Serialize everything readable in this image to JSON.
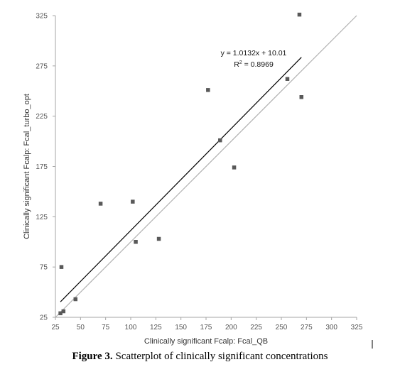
{
  "chart_data": {
    "type": "scatter",
    "xlabel": "Clinically significant Fcalp: Fcal_QB",
    "ylabel": "Clinically significant Fcalp: Fcal_turbo_opt",
    "xlim": [
      25,
      325
    ],
    "ylim": [
      25,
      325
    ],
    "x_ticks": [
      25,
      50,
      75,
      100,
      125,
      150,
      175,
      200,
      225,
      250,
      275,
      300,
      325
    ],
    "y_ticks": [
      25,
      75,
      125,
      175,
      225,
      275,
      325
    ],
    "grid": false,
    "points": [
      {
        "x": 30,
        "y": 29
      },
      {
        "x": 33,
        "y": 31
      },
      {
        "x": 31,
        "y": 75
      },
      {
        "x": 45,
        "y": 43
      },
      {
        "x": 70,
        "y": 138
      },
      {
        "x": 102,
        "y": 140
      },
      {
        "x": 105,
        "y": 100
      },
      {
        "x": 128,
        "y": 103
      },
      {
        "x": 177,
        "y": 251
      },
      {
        "x": 189,
        "y": 201
      },
      {
        "x": 203,
        "y": 174
      },
      {
        "x": 256,
        "y": 262
      },
      {
        "x": 268,
        "y": 326
      },
      {
        "x": 270,
        "y": 244
      }
    ],
    "trendline": {
      "slope": 1.0132,
      "intercept": 10.01,
      "x_range": [
        30,
        270
      ]
    },
    "identity_line": {
      "x_range": [
        25,
        325
      ]
    },
    "annotations": {
      "equation": "y = 1.0132x + 10.01",
      "r2_prefix": "R",
      "r2_sup": "2",
      "r2_suffix": " = 0.8969"
    },
    "colors": {
      "points": "#595959",
      "trendline": "#000000",
      "identity": "#b0b0b0",
      "axis": "#a6a6a6"
    }
  },
  "caption": {
    "label": "Figure 3.",
    "text": " Scatterplot of clinically significant concentrations"
  }
}
